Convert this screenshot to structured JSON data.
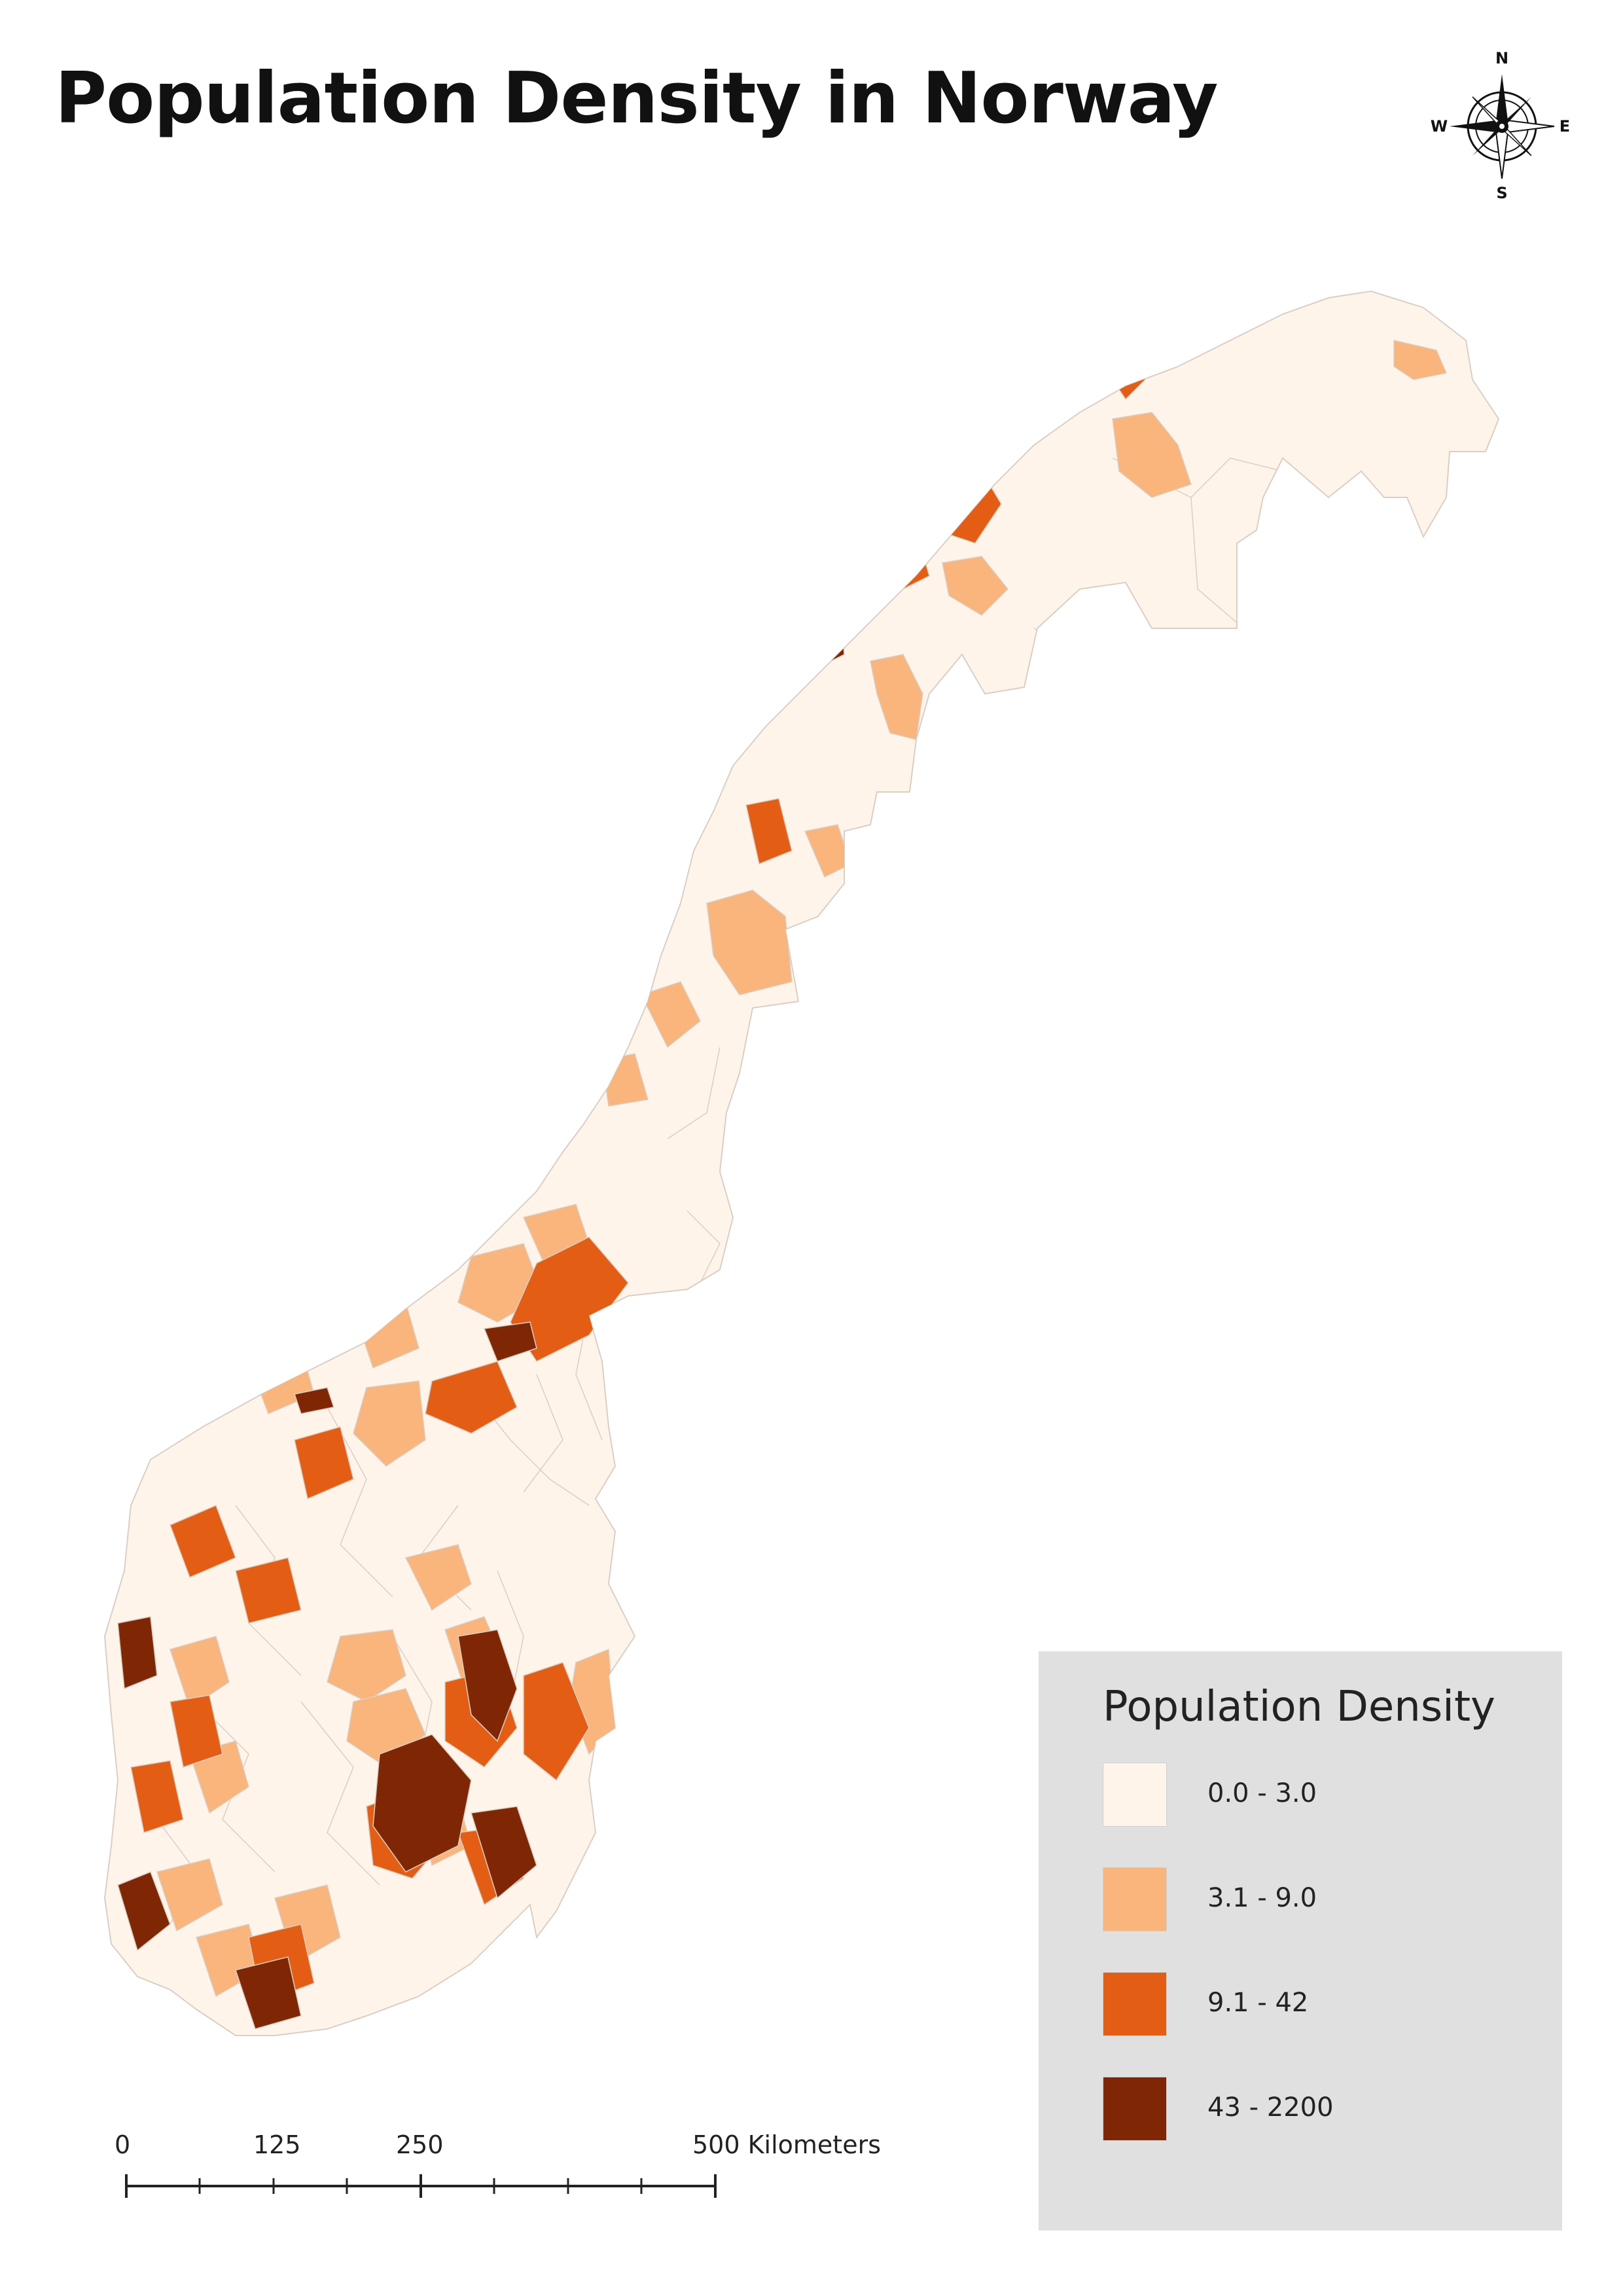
{
  "title": "Population Density in Norway",
  "compass": {
    "north": "N",
    "south": "S",
    "east": "E",
    "west": "W"
  },
  "legend": {
    "title": "Population Density",
    "classes": [
      {
        "label": "0.0 - 3.0",
        "color": "#fff4ea"
      },
      {
        "label": "3.1 - 9.0",
        "color": "#f9b57c"
      },
      {
        "label": "9.1 - 42",
        "color": "#e35e14"
      },
      {
        "label": "43 - 2200",
        "color": "#7f2705"
      }
    ]
  },
  "scale_bar": {
    "labels": [
      "0",
      "125",
      "250",
      "500 Kilometers"
    ]
  },
  "colors": {
    "border": "#d9cfc6",
    "legend_background": "#e0e0e0"
  }
}
